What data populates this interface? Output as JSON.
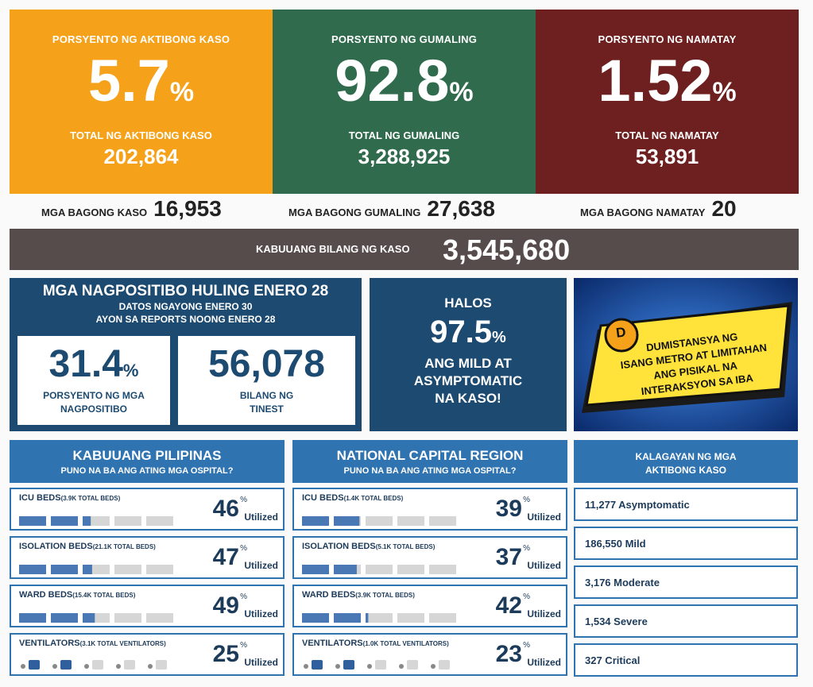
{
  "top": [
    {
      "label": "PORSYENTO NG AKTIBONG KASO",
      "percent": "5.7",
      "total_label": "TOTAL NG AKTIBONG KASO",
      "total": "202,864",
      "color": "#f5a21a"
    },
    {
      "label": "PORSYENTO NG GUMALING",
      "percent": "92.8",
      "total_label": "TOTAL NG GUMALING",
      "total": "3,288,925",
      "color": "#2f6b4c"
    },
    {
      "label": "PORSYENTO NG NAMATAY",
      "percent": "1.52",
      "total_label": "TOTAL NG NAMATAY",
      "total": "53,891",
      "color": "#6e1f1f"
    }
  ],
  "percent_sign": "%",
  "new": [
    {
      "label": "MGA BAGONG KASO",
      "value": "16,953"
    },
    {
      "label": "MGA BAGONG GUMALING",
      "value": "27,638"
    },
    {
      "label": "MGA BAGONG NAMATAY",
      "value": "20"
    }
  ],
  "total_cases": {
    "label": "KABUUANG BILANG NG KASO",
    "value": "3,545,680"
  },
  "positivity": {
    "title": "MGA NAGPOSITIBO HULING ENERO 28",
    "sub1": "DATOS NGAYONG ENERO 30",
    "sub2": "AYON SA REPORTS NOONG ENERO 28",
    "rate": "31.4",
    "rate_label1": "PORSYENTO NG MGA",
    "rate_label2": "NAGPOSITIBO",
    "tested": "56,078",
    "tested_label1": "BILANG NG",
    "tested_label2": "TINEST"
  },
  "halos": {
    "l1": "HALOS",
    "value": "97.5",
    "l2": "ANG MILD AT",
    "l3": "ASYMPTOMATIC",
    "l4": "NA KASO!"
  },
  "distansya": {
    "l1": "DUMISTANSYA NG",
    "l2": "ISANG METRO AT LIMITAHAN",
    "l3": "ANG PISIKAL NA",
    "l4": "INTERAKSYON SA IBA"
  },
  "utilized": "Utilized",
  "ph": {
    "title": "KABUUANG PILIPINAS",
    "subtitle": "PUNO NA BA ANG ATING MGA OSPITAL?",
    "rows": [
      {
        "label": "ICU BEDS",
        "note": "(3.9K TOTAL BEDS)",
        "value": "46",
        "fraction": 0.46
      },
      {
        "label": "ISOLATION BEDS",
        "note": "(21.1K TOTAL BEDS)",
        "value": "47",
        "fraction": 0.47
      },
      {
        "label": "WARD BEDS",
        "note": "(15.4K TOTAL BEDS)",
        "value": "49",
        "fraction": 0.49
      },
      {
        "label": "VENTILATORS",
        "note": "(3.1K TOTAL VENTILATORS)",
        "value": "25",
        "fraction": 0.25
      }
    ]
  },
  "ncr": {
    "title": "NATIONAL CAPITAL REGION",
    "subtitle": "PUNO NA BA ANG ATING MGA OSPITAL?",
    "rows": [
      {
        "label": "ICU BEDS",
        "note": "(1.4K TOTAL BEDS)",
        "value": "39",
        "fraction": 0.39
      },
      {
        "label": "ISOLATION BEDS",
        "note": "(5.1K TOTAL BEDS)",
        "value": "37",
        "fraction": 0.37
      },
      {
        "label": "WARD BEDS",
        "note": "(3.9K TOTAL BEDS)",
        "value": "42",
        "fraction": 0.42
      },
      {
        "label": "VENTILATORS",
        "note": "(1.0K TOTAL VENTILATORS)",
        "value": "23",
        "fraction": 0.23
      }
    ]
  },
  "status": {
    "title1": "KALAGAYAN NG MGA",
    "title2": "AKTIBONG KASO",
    "items": [
      "11,277 Asymptomatic",
      "186,550 Mild",
      "3,176 Moderate",
      "1,534 Severe",
      "327 Critical"
    ]
  }
}
